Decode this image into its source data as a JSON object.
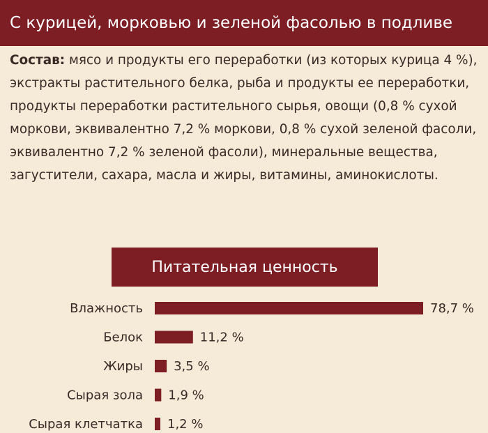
{
  "header": {
    "title": "С курицей, морковью и зеленой фасолью в подливе"
  },
  "composition": {
    "label": "Состав:",
    "text": "мясо и продукты его переработки (из которых курица 4 %), экстракты растительного белка, рыба и продукты ее переработки, продукты переработки растительного сырья, овощи (0,8 % сухой моркови, эквивалентно 7,2 % моркови, 0,8 % сухой зеленой фасоли, эквивалентно 7,2 % зеленой фасоли), минеральные вещества, загустители, сахара, масла и жиры, витамины, аминокислоты."
  },
  "section": {
    "title": "Питательная ценность"
  },
  "colors": {
    "brand": "#7d1d24",
    "background": "#f6ead8",
    "text": "#3a2a25"
  },
  "chart_data": {
    "type": "bar",
    "orientation": "horizontal",
    "title": "Питательная ценность",
    "categories": [
      "Влажность",
      "Белок",
      "Жиры",
      "Сырая зола",
      "Сырая клетчатка"
    ],
    "values": [
      78.7,
      11.2,
      3.5,
      1.9,
      1.2
    ],
    "labels": [
      "78,7 %",
      "11,2 %",
      "3,5 %",
      "1,9 %",
      "1,2 %"
    ],
    "unit": "%"
  }
}
